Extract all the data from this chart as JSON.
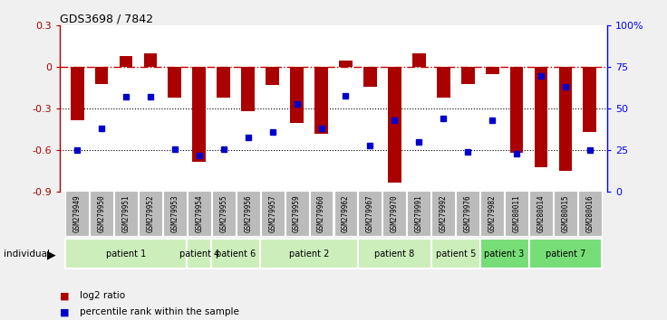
{
  "title": "GDS3698 / 7842",
  "samples": [
    "GSM279949",
    "GSM279950",
    "GSM279951",
    "GSM279952",
    "GSM279953",
    "GSM279954",
    "GSM279955",
    "GSM279956",
    "GSM279957",
    "GSM279959",
    "GSM279960",
    "GSM279962",
    "GSM279967",
    "GSM279970",
    "GSM279991",
    "GSM279992",
    "GSM279976",
    "GSM279982",
    "GSM280011",
    "GSM280014",
    "GSM280015",
    "GSM280016"
  ],
  "log2_ratio": [
    -0.38,
    -0.12,
    0.08,
    0.1,
    -0.22,
    -0.68,
    -0.22,
    -0.32,
    -0.13,
    -0.4,
    -0.48,
    0.05,
    -0.14,
    -0.83,
    0.1,
    -0.22,
    -0.12,
    -0.05,
    -0.62,
    -0.72,
    -0.75,
    -0.47
  ],
  "percentile_pct": [
    25,
    38,
    57,
    57,
    26,
    22,
    26,
    33,
    36,
    53,
    38,
    58,
    28,
    43,
    30,
    44,
    24,
    43,
    23,
    70,
    63,
    25
  ],
  "patients": [
    {
      "label": "patient 1",
      "start": 0,
      "end": 5,
      "color": "#cceebb"
    },
    {
      "label": "patient 4",
      "start": 5,
      "end": 6,
      "color": "#cceebb"
    },
    {
      "label": "patient 6",
      "start": 6,
      "end": 8,
      "color": "#cceebb"
    },
    {
      "label": "patient 2",
      "start": 8,
      "end": 12,
      "color": "#cceebb"
    },
    {
      "label": "patient 8",
      "start": 12,
      "end": 15,
      "color": "#cceebb"
    },
    {
      "label": "patient 5",
      "start": 15,
      "end": 17,
      "color": "#cceebb"
    },
    {
      "label": "patient 3",
      "start": 17,
      "end": 19,
      "color": "#77dd77"
    },
    {
      "label": "patient 7",
      "start": 19,
      "end": 22,
      "color": "#77dd77"
    }
  ],
  "ylim": [
    -0.9,
    0.3
  ],
  "y_ticks": [
    -0.9,
    -0.6,
    -0.3,
    0.0,
    0.3
  ],
  "y_ticklabels": [
    "-0.9",
    "-0.6",
    "-0.3",
    "0",
    "0.3"
  ],
  "y2_ticks_pct": [
    0,
    25,
    50,
    75,
    100
  ],
  "y2_ticklabels": [
    "0",
    "25",
    "50",
    "75",
    "100%"
  ],
  "bar_color": "#aa0000",
  "dot_color": "#0000cc",
  "hline_color": "#cc0000",
  "dotted_lines": [
    -0.3,
    -0.6
  ],
  "legend_items": [
    "log2 ratio",
    "percentile rank within the sample"
  ],
  "bg_color": "#f0f0f0",
  "plot_bg": "#ffffff",
  "sample_box_color": "#bbbbbb",
  "bar_width": 0.55
}
